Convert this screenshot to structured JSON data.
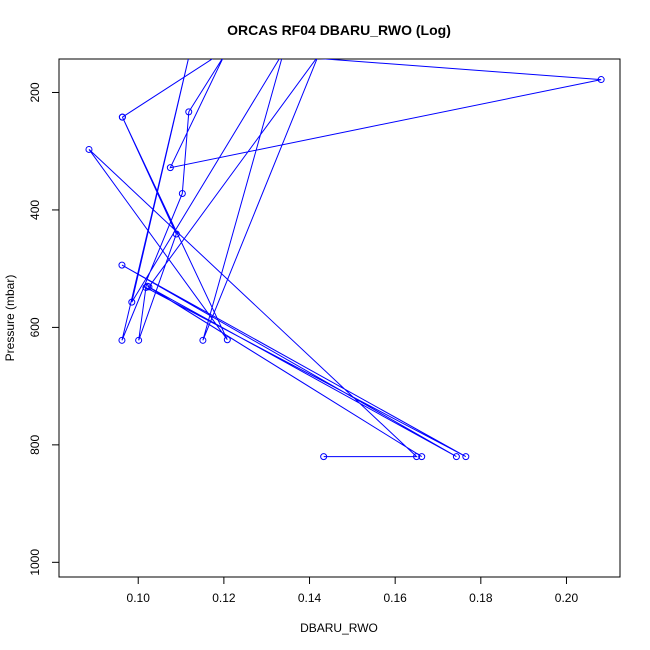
{
  "chart_data": {
    "type": "line",
    "title": "ORCAS RF04 DBARU_RWO (Log)",
    "xlabel": "DBARU_RWO",
    "ylabel": "Pressure (mbar)",
    "xlim": [
      0.0815,
      0.2125
    ],
    "ylim": [
      1025,
      143
    ],
    "y_inverted": true,
    "grid": false,
    "legend": "none",
    "color": "#0000ff",
    "x_ticks": [
      0.1,
      0.12,
      0.14,
      0.16,
      0.18,
      0.2
    ],
    "x_tick_labels": [
      "0.10",
      "0.12",
      "0.14",
      "0.16",
      "0.18",
      "0.20"
    ],
    "y_ticks": [
      200,
      400,
      600,
      800,
      1000
    ],
    "y_tick_labels": [
      "200",
      "400",
      "600",
      "800",
      "1000"
    ],
    "series": [
      {
        "markers": true,
        "points": [
          {
            "x": 0.1433,
            "y": 820
          },
          {
            "x": 0.165,
            "y": 820
          },
          {
            "x": 0.0885,
            "y": 297
          },
          {
            "x": 0.1208,
            "y": 621
          },
          {
            "x": 0.0963,
            "y": 242
          },
          {
            "x": 0.1089,
            "y": 441
          },
          {
            "x": 0.1001,
            "y": 622
          },
          {
            "x": 0.1018,
            "y": 532
          },
          {
            "x": 0.1765,
            "y": 820
          },
          {
            "x": 0.0962,
            "y": 494
          },
          {
            "x": 0.1743,
            "y": 820
          },
          {
            "x": 0.1022,
            "y": 530
          },
          {
            "x": 0.1662,
            "y": 820
          },
          {
            "x": 0.1025,
            "y": 531
          },
          {
            "x": 0.142,
            "y": 138
          },
          {
            "x": 0.1151,
            "y": 622
          },
          {
            "x": 0.134,
            "y": 130
          },
          {
            "x": 0.0985,
            "y": 557
          },
          {
            "x": 0.112,
            "y": 134
          },
          {
            "x": 0.0962,
            "y": 622
          },
          {
            "x": 0.1103,
            "y": 372
          },
          {
            "x": 0.1118,
            "y": 233
          },
          {
            "x": 0.12,
            "y": 138
          },
          {
            "x": 0.1075,
            "y": 328
          },
          {
            "x": 0.2081,
            "y": 178
          },
          {
            "x": 0.12,
            "y": 130
          },
          {
            "x": 0.0963,
            "y": 242
          }
        ]
      }
    ]
  }
}
